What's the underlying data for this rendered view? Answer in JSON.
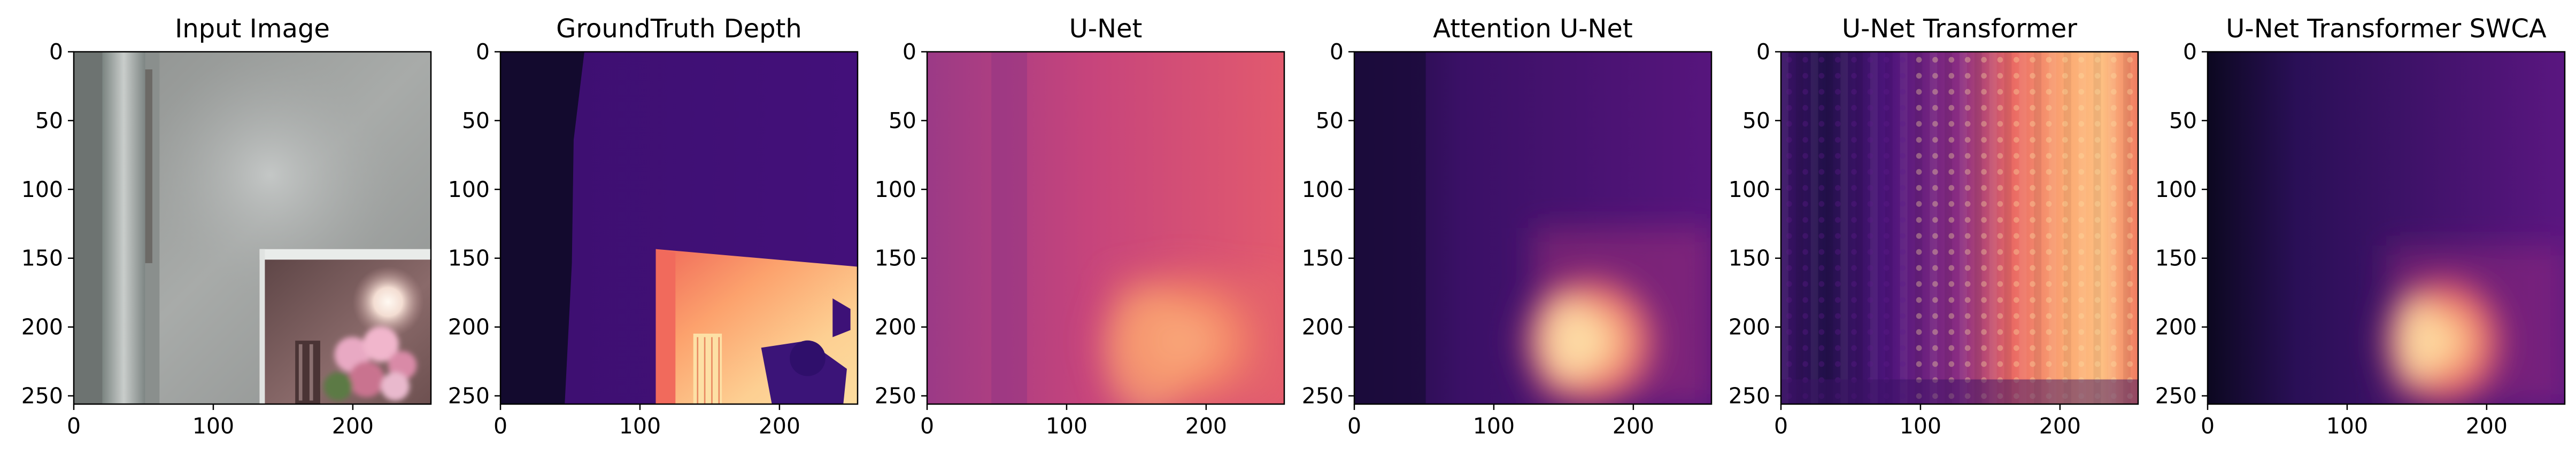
{
  "figure": {
    "panels": [
      {
        "title": "Input Image",
        "kind": "photo"
      },
      {
        "title": "GroundTruth Depth",
        "kind": "gt"
      },
      {
        "title": "U-Net",
        "kind": "unet"
      },
      {
        "title": "Attention U-Net",
        "kind": "attn"
      },
      {
        "title": "U-Net Transformer",
        "kind": "transformer"
      },
      {
        "title": "U-Net Transformer SWCA",
        "kind": "swca"
      }
    ],
    "x_ticks": [
      "0",
      "100",
      "200"
    ],
    "y_ticks": [
      "0",
      "50",
      "100",
      "150",
      "200",
      "250"
    ],
    "colormap": "magma"
  }
}
